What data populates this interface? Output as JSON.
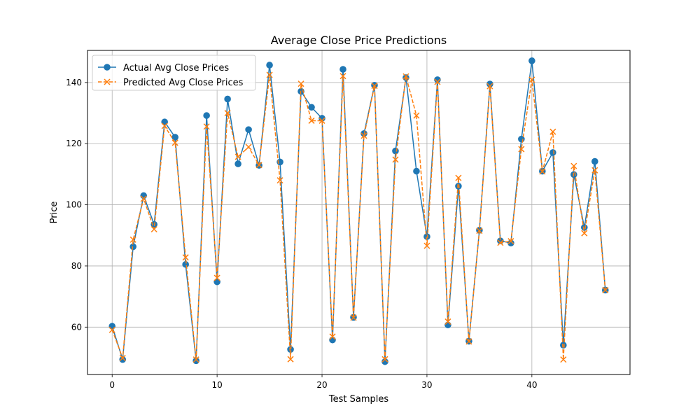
{
  "chart_data": {
    "type": "line",
    "title": "Average Close Price Predictions",
    "xlabel": "Test Samples",
    "ylabel": "Price",
    "xlim": [
      -2.35,
      49.35
    ],
    "ylim": [
      44.5,
      150.5
    ],
    "xticks": [
      0,
      10,
      20,
      30,
      40
    ],
    "yticks": [
      60,
      80,
      100,
      120,
      140
    ],
    "grid": true,
    "legend_position": "top-left",
    "x": [
      0,
      1,
      2,
      3,
      4,
      5,
      6,
      7,
      8,
      9,
      10,
      11,
      12,
      13,
      14,
      15,
      16,
      17,
      18,
      19,
      20,
      21,
      22,
      23,
      24,
      25,
      26,
      27,
      28,
      29,
      30,
      31,
      32,
      33,
      34,
      35,
      36,
      37,
      38,
      39,
      40,
      41,
      42,
      43,
      44,
      45,
      46,
      47
    ],
    "series": [
      {
        "name": "Actual Avg Close Prices",
        "color": "#1f77b4",
        "linestyle": "solid",
        "marker": "circle",
        "values": [
          60.3,
          49.4,
          86.3,
          103.0,
          93.6,
          127.1,
          122.1,
          80.5,
          49.0,
          129.2,
          74.8,
          134.6,
          113.4,
          124.6,
          112.9,
          145.7,
          114.0,
          52.7,
          137.1,
          131.9,
          128.3,
          55.8,
          144.3,
          63.2,
          123.3,
          139.1,
          48.7,
          117.6,
          141.6,
          111.0,
          89.6,
          140.9,
          60.7,
          106.1,
          55.4,
          91.7,
          139.5,
          88.2,
          87.5,
          121.5,
          147.1,
          111.0,
          117.1,
          54.1,
          109.9,
          92.6,
          114.2,
          72.1
        ]
      },
      {
        "name": "Predicted Avg Close Prices",
        "color": "#ff7f0e",
        "linestyle": "dashed",
        "marker": "x",
        "values": [
          59.1,
          49.9,
          88.6,
          102.0,
          92.0,
          125.8,
          120.3,
          82.8,
          49.4,
          125.6,
          76.1,
          130.0,
          115.7,
          118.9,
          113.0,
          142.5,
          108.0,
          49.5,
          139.6,
          127.5,
          127.5,
          56.9,
          142.1,
          63.1,
          122.6,
          138.9,
          49.5,
          114.8,
          142.0,
          129.2,
          86.6,
          140.2,
          61.8,
          108.8,
          55.3,
          91.5,
          138.8,
          87.6,
          88.1,
          118.2,
          140.9,
          110.9,
          123.9,
          49.4,
          112.7,
          90.7,
          111.3,
          72.1
        ]
      }
    ]
  }
}
